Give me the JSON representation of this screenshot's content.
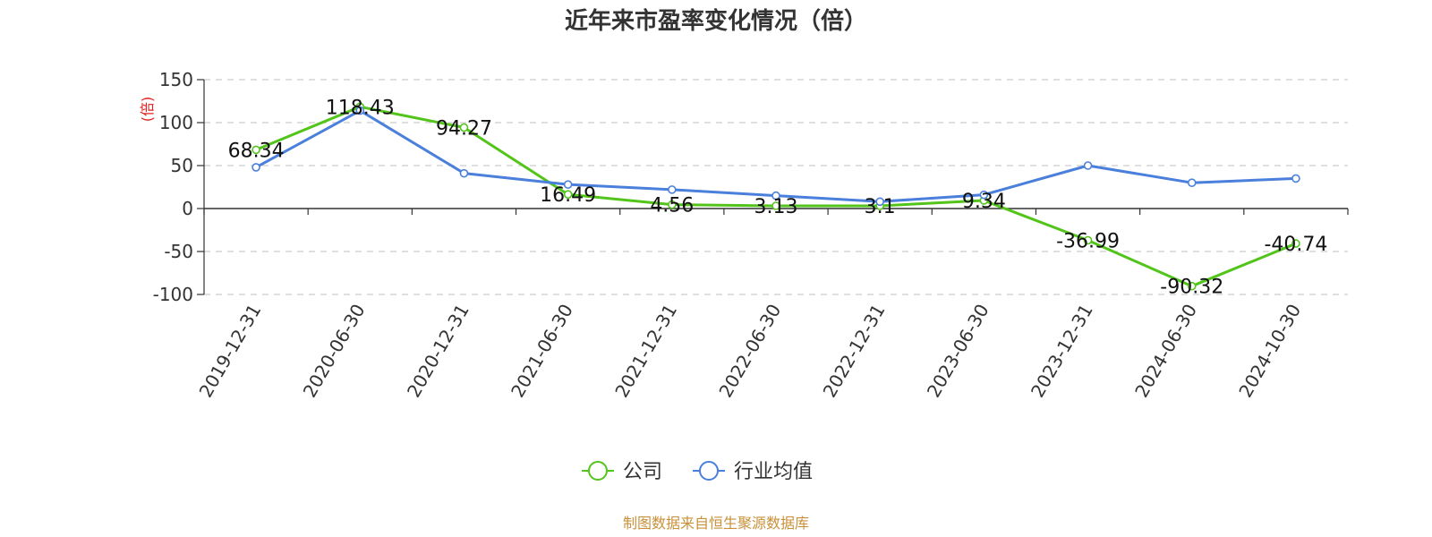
{
  "chart_data": {
    "type": "line",
    "title": "近年来市盈率变化情况（倍）",
    "ylabel": "(倍)",
    "xlabel": "",
    "ylim": [
      -100,
      150
    ],
    "yticks": [
      -100,
      -50,
      0,
      50,
      100,
      150
    ],
    "grid": true,
    "legend_position": "bottom-center",
    "categories": [
      "2019-12-31",
      "2020-06-30",
      "2020-12-31",
      "2021-06-30",
      "2021-12-31",
      "2022-06-30",
      "2022-12-31",
      "2023-06-30",
      "2023-12-31",
      "2024-06-30",
      "2024-10-30"
    ],
    "series": [
      {
        "name": "公司",
        "color": "#52c41a",
        "values": [
          68.34,
          118.43,
          94.27,
          16.49,
          4.56,
          3.13,
          3.1,
          9.34,
          -36.99,
          -90.32,
          -40.74
        ],
        "labels": [
          "68.34",
          "118.43",
          "94.27",
          "16.49",
          "4.56",
          "3.13",
          "3.1",
          "9.34",
          "-36.99",
          "-90.32",
          "-40.74"
        ]
      },
      {
        "name": "行业均值",
        "color": "#4a7fdb",
        "values": [
          48,
          114,
          41,
          28,
          22,
          15,
          8,
          16,
          50,
          30,
          35
        ]
      }
    ],
    "source_note": "制图数据来自恒生聚源数据库"
  }
}
